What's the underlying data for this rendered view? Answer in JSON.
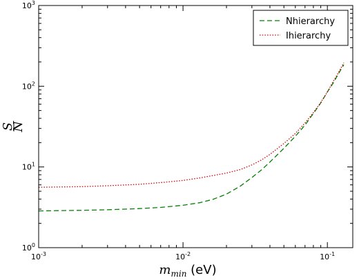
{
  "chart_data": {
    "type": "line",
    "title": "",
    "xlabel": {
      "math": "m",
      "sub": "min",
      "unit": " (eV)"
    },
    "ylabel": {
      "numerator": "S",
      "denominator": "N"
    },
    "xscale": "log",
    "yscale": "log",
    "xlim": [
      0.001,
      0.15
    ],
    "ylim": [
      1,
      1000
    ],
    "grid": false,
    "legend_placement": "top-right",
    "x_ticks": [
      {
        "value": 0.001,
        "base": "10",
        "exp": "-3"
      },
      {
        "value": 0.01,
        "base": "10",
        "exp": "-2"
      },
      {
        "value": 0.1,
        "base": "10",
        "exp": "-1"
      }
    ],
    "y_ticks": [
      {
        "value": 1,
        "base": "10",
        "exp": "0"
      },
      {
        "value": 10,
        "base": "10",
        "exp": "1"
      },
      {
        "value": 100,
        "base": "10",
        "exp": "2"
      },
      {
        "value": 1000,
        "base": "10",
        "exp": "3"
      }
    ],
    "series": [
      {
        "name": "Nhierarchy",
        "color": "#007f00",
        "style": "dashed",
        "x": [
          0.001,
          0.002,
          0.003,
          0.005,
          0.007,
          0.01,
          0.013,
          0.016,
          0.02,
          0.025,
          0.03,
          0.035,
          0.04,
          0.05,
          0.06,
          0.07,
          0.08,
          0.09,
          0.1,
          0.11,
          0.12,
          0.13
        ],
        "y": [
          2.85,
          2.9,
          2.95,
          3.05,
          3.15,
          3.35,
          3.6,
          3.95,
          4.6,
          5.8,
          7.4,
          9.2,
          11.5,
          17.0,
          24.0,
          33.0,
          46.0,
          62.0,
          85.0,
          110.0,
          145.0,
          185.0
        ]
      },
      {
        "name": "Ihierarchy",
        "color": "#cc0000",
        "style": "dotted",
        "x": [
          0.001,
          0.002,
          0.003,
          0.005,
          0.007,
          0.01,
          0.013,
          0.016,
          0.02,
          0.025,
          0.03,
          0.035,
          0.04,
          0.05,
          0.06,
          0.07,
          0.08,
          0.09,
          0.1,
          0.11,
          0.12,
          0.13
        ],
        "y": [
          5.6,
          5.7,
          5.85,
          6.1,
          6.4,
          6.8,
          7.3,
          7.8,
          8.4,
          9.3,
          10.6,
          12.2,
          14.3,
          19.5,
          26.0,
          35.0,
          47.0,
          63.0,
          85.0,
          115.0,
          150.0,
          195.0
        ]
      }
    ]
  }
}
